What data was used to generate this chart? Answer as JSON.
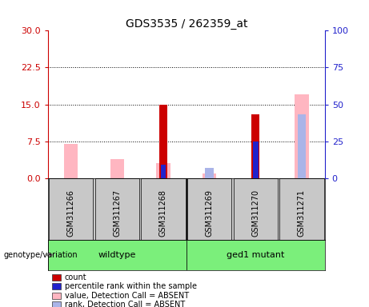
{
  "title": "GDS3535 / 262359_at",
  "samples": [
    "GSM311266",
    "GSM311267",
    "GSM311268",
    "GSM311269",
    "GSM311270",
    "GSM311271"
  ],
  "count_values": [
    0,
    0,
    15,
    0,
    13,
    0
  ],
  "percentile_values": [
    0,
    0,
    9,
    0,
    25,
    0
  ],
  "absent_value_values": [
    23,
    13,
    10,
    3,
    0,
    57
  ],
  "absent_rank_values": [
    0,
    0,
    0,
    7,
    0,
    43
  ],
  "ylim_left": [
    0,
    30
  ],
  "ylim_right": [
    0,
    100
  ],
  "yticks_left": [
    0,
    7.5,
    15,
    22.5,
    30
  ],
  "yticks_right": [
    0,
    25,
    50,
    75,
    100
  ],
  "hlines": [
    7.5,
    15,
    22.5
  ],
  "count_color": "#cc0000",
  "percentile_color": "#2222cc",
  "absent_value_color": "#ffb6c1",
  "absent_rank_color": "#aab4e8",
  "left_tick_color": "#cc0000",
  "right_tick_color": "#2222cc",
  "group_color": "#7bef7b",
  "sample_box_color": "#c8c8c8",
  "legend_items": [
    {
      "color": "#cc0000",
      "label": "count"
    },
    {
      "color": "#2222cc",
      "label": "percentile rank within the sample"
    },
    {
      "color": "#ffb6c1",
      "label": "value, Detection Call = ABSENT"
    },
    {
      "color": "#aab4e8",
      "label": "rank, Detection Call = ABSENT"
    }
  ]
}
